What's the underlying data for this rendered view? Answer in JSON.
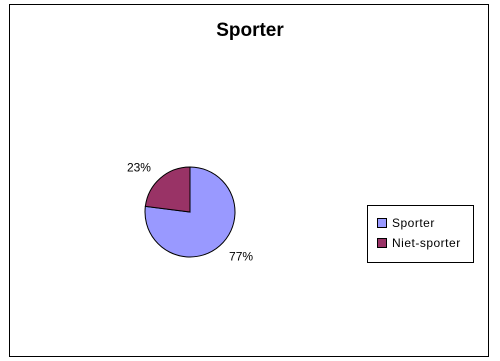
{
  "chart_data": {
    "type": "pie",
    "title": "Sporter",
    "slices": [
      {
        "name": "Sporter",
        "value": 77,
        "label": "77%",
        "color": "#9999ff"
      },
      {
        "name": "Niet-sporter",
        "value": 23,
        "label": "23%",
        "color": "#993366"
      }
    ],
    "legend_position": "right"
  }
}
